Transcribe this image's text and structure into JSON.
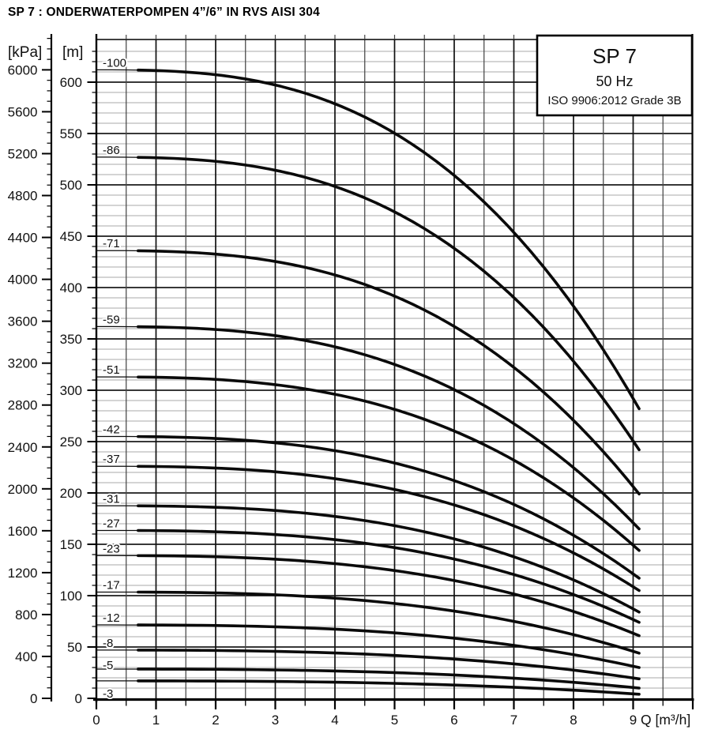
{
  "title": "SP 7 : ONDERWATERPOMPEN 4”/6” IN RVS AISI 304",
  "info_box": {
    "model": "SP 7",
    "frequency": "50 Hz",
    "standard": "ISO 9906:2012 Grade 3B"
  },
  "axes": {
    "pressure": {
      "unit_label": "[kPa]",
      "major_ticks": [
        0,
        400,
        800,
        1200,
        1600,
        2000,
        2400,
        2800,
        3200,
        3600,
        4000,
        4400,
        4800,
        5200,
        5600,
        6000
      ],
      "minor_step": 100,
      "minor_max": 6300
    },
    "head": {
      "unit_label": "[m]",
      "major_ticks": [
        0,
        50,
        100,
        150,
        200,
        250,
        300,
        350,
        400,
        450,
        500,
        550,
        600
      ],
      "minor_step": 10,
      "minor_max": 630
    },
    "flow": {
      "unit_label": "Q [m³/h]",
      "major_ticks": [
        0,
        1,
        2,
        3,
        4,
        5,
        6,
        7,
        8,
        9
      ],
      "minor_step": 0.5,
      "max": 10
    }
  },
  "colors": {
    "background": "#ffffff",
    "curve": "#0a0a0a",
    "grid_minor": "#a8a8a8",
    "grid_major": "#1c1c1c",
    "grid_vertical_major": "#101010",
    "grid_vertical_minor": "#464646",
    "axis": "#000000",
    "text": "#111111"
  },
  "chart_data": {
    "type": "line",
    "title": "SP 7 submersible pump performance curves (head vs flow)",
    "xlabel": "Q [m³/h]",
    "ylabel_pressure": "[kPa]",
    "ylabel_head": "[m]",
    "frequency": "50 Hz",
    "standard": "ISO 9906:2012 Grade 3B",
    "xlim": [
      0,
      10
    ],
    "ylim_head_m": [
      0,
      641
    ],
    "ylim_pressure_kpa": [
      0,
      6360
    ],
    "grid": "on",
    "curve_q_start": 0,
    "curve_q_end": 9.1,
    "curve_exponent": 2.8,
    "thick_segment_from_q": 0.7,
    "series": [
      {
        "label": "-100",
        "stages": 100,
        "head_start_m": 612,
        "head_end_m": 282
      },
      {
        "label": "-86",
        "stages": 86,
        "head_start_m": 527,
        "head_end_m": 242
      },
      {
        "label": "-71",
        "stages": 71,
        "head_start_m": 436,
        "head_end_m": 199
      },
      {
        "label": "-59",
        "stages": 59,
        "head_start_m": 362,
        "head_end_m": 165
      },
      {
        "label": "-51",
        "stages": 51,
        "head_start_m": 313,
        "head_end_m": 144
      },
      {
        "label": "-42",
        "stages": 42,
        "head_start_m": 255,
        "head_end_m": 117
      },
      {
        "label": "-37",
        "stages": 37,
        "head_start_m": 226,
        "head_end_m": 105
      },
      {
        "label": "-31",
        "stages": 31,
        "head_start_m": 187.5,
        "head_end_m": 84
      },
      {
        "label": "-27",
        "stages": 27,
        "head_start_m": 163.5,
        "head_end_m": 74
      },
      {
        "label": "-23",
        "stages": 23,
        "head_start_m": 139,
        "head_end_m": 61
      },
      {
        "label": "-17",
        "stages": 17,
        "head_start_m": 103.5,
        "head_end_m": 44
      },
      {
        "label": "-12",
        "stages": 12,
        "head_start_m": 71.5,
        "head_end_m": 30
      },
      {
        "label": "-8",
        "stages": 8,
        "head_start_m": 47,
        "head_end_m": 19
      },
      {
        "label": "-5",
        "stages": 5,
        "head_start_m": 28.5,
        "head_end_m": 10,
        "label_dy": 0
      },
      {
        "label": "-3",
        "stages": 3,
        "head_start_m": 17,
        "head_end_m": 4,
        "label_dy": 21
      }
    ]
  }
}
